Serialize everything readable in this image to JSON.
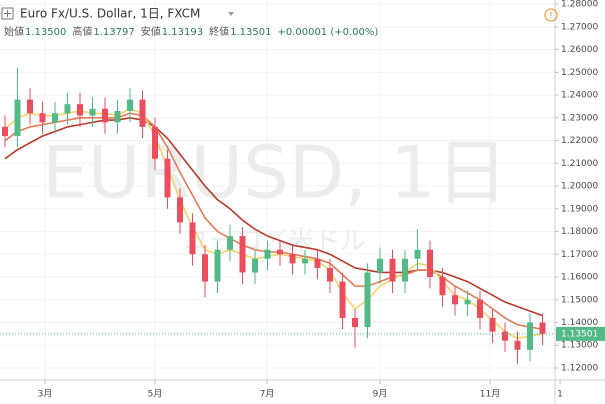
{
  "chart_data": {
    "type": "candlestick",
    "title": "Euro Fx/U.S. Dollar, 1日, FXCM",
    "stats": [
      {
        "label": "始値",
        "value": "1.13500"
      },
      {
        "label": "高値",
        "value": "1.13797"
      },
      {
        "label": "安値",
        "value": "1.13193"
      },
      {
        "label": "終値",
        "value": "1.13501"
      }
    ],
    "change": "+0.00001 (+0.00%)",
    "watermark": "EURUSD, 1日",
    "watermark_sub": "ユーロ／米ドル",
    "up_color": "#53b987",
    "down_color": "#eb4d5c",
    "x": [
      1,
      3.5,
      6,
      8.5,
      11,
      13.5,
      16,
      18.5,
      21,
      23.5,
      26,
      28.5,
      31,
      33.5,
      36,
      38.5,
      41,
      43.5,
      46,
      48.5,
      51,
      53.5,
      56,
      58.5,
      61,
      63.5,
      66,
      68.5,
      71,
      73.5,
      76,
      78.5,
      81,
      83.5,
      86,
      88.5,
      91,
      93.5,
      96,
      98.5,
      101,
      103.5,
      106,
      108.5
    ],
    "open": [
      1.226,
      1.222,
      1.238,
      1.232,
      1.228,
      1.232,
      1.236,
      1.231,
      1.234,
      1.228,
      1.233,
      1.238,
      1.226,
      1.212,
      1.195,
      1.184,
      1.17,
      1.158,
      1.172,
      1.178,
      1.162,
      1.168,
      1.172,
      1.17,
      1.166,
      1.168,
      1.164,
      1.158,
      1.142,
      1.138,
      1.162,
      1.168,
      1.158,
      1.168,
      1.172,
      1.16,
      1.152,
      1.148,
      1.15,
      1.142,
      1.136,
      1.132,
      1.128,
      1.14
    ],
    "high": [
      1.231,
      1.252,
      1.243,
      1.237,
      1.237,
      1.241,
      1.241,
      1.239,
      1.239,
      1.238,
      1.243,
      1.242,
      1.23,
      1.216,
      1.199,
      1.188,
      1.174,
      1.176,
      1.183,
      1.182,
      1.172,
      1.176,
      1.176,
      1.174,
      1.172,
      1.172,
      1.168,
      1.162,
      1.146,
      1.166,
      1.173,
      1.172,
      1.172,
      1.181,
      1.176,
      1.164,
      1.156,
      1.154,
      1.154,
      1.146,
      1.14,
      1.136,
      1.144,
      1.144
    ],
    "low": [
      1.217,
      1.217,
      1.227,
      1.223,
      1.223,
      1.227,
      1.226,
      1.226,
      1.223,
      1.223,
      1.228,
      1.221,
      1.207,
      1.19,
      1.179,
      1.165,
      1.151,
      1.153,
      1.167,
      1.157,
      1.157,
      1.163,
      1.165,
      1.161,
      1.161,
      1.159,
      1.153,
      1.137,
      1.129,
      1.133,
      1.157,
      1.153,
      1.153,
      1.163,
      1.155,
      1.147,
      1.143,
      1.143,
      1.137,
      1.131,
      1.127,
      1.122,
      1.123,
      1.13
    ],
    "close": [
      1.222,
      1.238,
      1.232,
      1.228,
      1.232,
      1.236,
      1.231,
      1.234,
      1.228,
      1.233,
      1.238,
      1.226,
      1.212,
      1.195,
      1.184,
      1.17,
      1.158,
      1.172,
      1.178,
      1.162,
      1.168,
      1.172,
      1.17,
      1.166,
      1.168,
      1.164,
      1.158,
      1.142,
      1.138,
      1.162,
      1.168,
      1.158,
      1.168,
      1.172,
      1.16,
      1.152,
      1.148,
      1.15,
      1.142,
      1.136,
      1.132,
      1.128,
      1.14,
      1.135
    ],
    "series": [
      {
        "color": "#b5392c",
        "values": [
          1.212,
          1.216,
          1.219,
          1.222,
          1.224,
          1.226,
          1.227,
          1.228,
          1.229,
          1.229,
          1.23,
          1.229,
          1.226,
          1.221,
          1.214,
          1.207,
          1.2,
          1.194,
          1.19,
          1.185,
          1.181,
          1.178,
          1.176,
          1.174,
          1.173,
          1.172,
          1.17,
          1.167,
          1.164,
          1.163,
          1.162,
          1.162,
          1.162,
          1.163,
          1.163,
          1.162,
          1.16,
          1.158,
          1.155,
          1.152,
          1.149,
          1.147,
          1.145,
          1.143
        ]
      },
      {
        "color": "#e27a5a",
        "values": [
          1.22,
          1.224,
          1.226,
          1.227,
          1.228,
          1.229,
          1.23,
          1.23,
          1.23,
          1.23,
          1.232,
          1.231,
          1.226,
          1.217,
          1.206,
          1.196,
          1.186,
          1.18,
          1.177,
          1.174,
          1.172,
          1.171,
          1.171,
          1.17,
          1.169,
          1.168,
          1.166,
          1.161,
          1.156,
          1.156,
          1.158,
          1.16,
          1.161,
          1.163,
          1.163,
          1.16,
          1.156,
          1.153,
          1.15,
          1.146,
          1.142,
          1.139,
          1.138,
          1.137
        ]
      },
      {
        "color": "#f2d36b",
        "values": [
          1.225,
          1.23,
          1.232,
          1.231,
          1.231,
          1.232,
          1.233,
          1.232,
          1.232,
          1.231,
          1.234,
          1.232,
          1.222,
          1.208,
          1.194,
          1.182,
          1.172,
          1.17,
          1.172,
          1.17,
          1.168,
          1.169,
          1.17,
          1.169,
          1.168,
          1.167,
          1.163,
          1.153,
          1.146,
          1.15,
          1.156,
          1.159,
          1.162,
          1.166,
          1.165,
          1.158,
          1.152,
          1.15,
          1.146,
          1.141,
          1.136,
          1.133,
          1.134,
          1.135
        ]
      }
    ],
    "xlim": [
      0,
      111
    ],
    "xticks": [
      {
        "value": 9,
        "label": "3月"
      },
      {
        "value": 31,
        "label": "5月"
      },
      {
        "value": 53.4,
        "label": "7月"
      },
      {
        "value": 76,
        "label": "9月"
      },
      {
        "value": 98,
        "label": "11月"
      },
      {
        "value": 112,
        "label": "1"
      }
    ],
    "ylim": [
      1.1156,
      1.2818
    ],
    "yticks": [
      {
        "value": 1.12,
        "label": "1.12000"
      },
      {
        "value": 1.13,
        "label": "1.13000"
      },
      {
        "value": 1.14,
        "label": "1.14000"
      },
      {
        "value": 1.15,
        "label": "1.15000"
      },
      {
        "value": 1.16,
        "label": "1.16000"
      },
      {
        "value": 1.17,
        "label": "1.17000"
      },
      {
        "value": 1.18,
        "label": "1.18000"
      },
      {
        "value": 1.19,
        "label": "1.19000"
      },
      {
        "value": 1.2,
        "label": "1.20000"
      },
      {
        "value": 1.21,
        "label": "1.21000"
      },
      {
        "value": 1.22,
        "label": "1.22000"
      },
      {
        "value": 1.23,
        "label": "1.23000"
      },
      {
        "value": 1.24,
        "label": "1.24000"
      },
      {
        "value": 1.25,
        "label": "1.25000"
      },
      {
        "value": 1.26,
        "label": "1.26000"
      },
      {
        "value": 1.27,
        "label": "1.27000"
      },
      {
        "value": 1.28,
        "label": "1.28000"
      }
    ],
    "last_price": 1.13501,
    "last_price_label": "1.13501",
    "grid": true
  }
}
